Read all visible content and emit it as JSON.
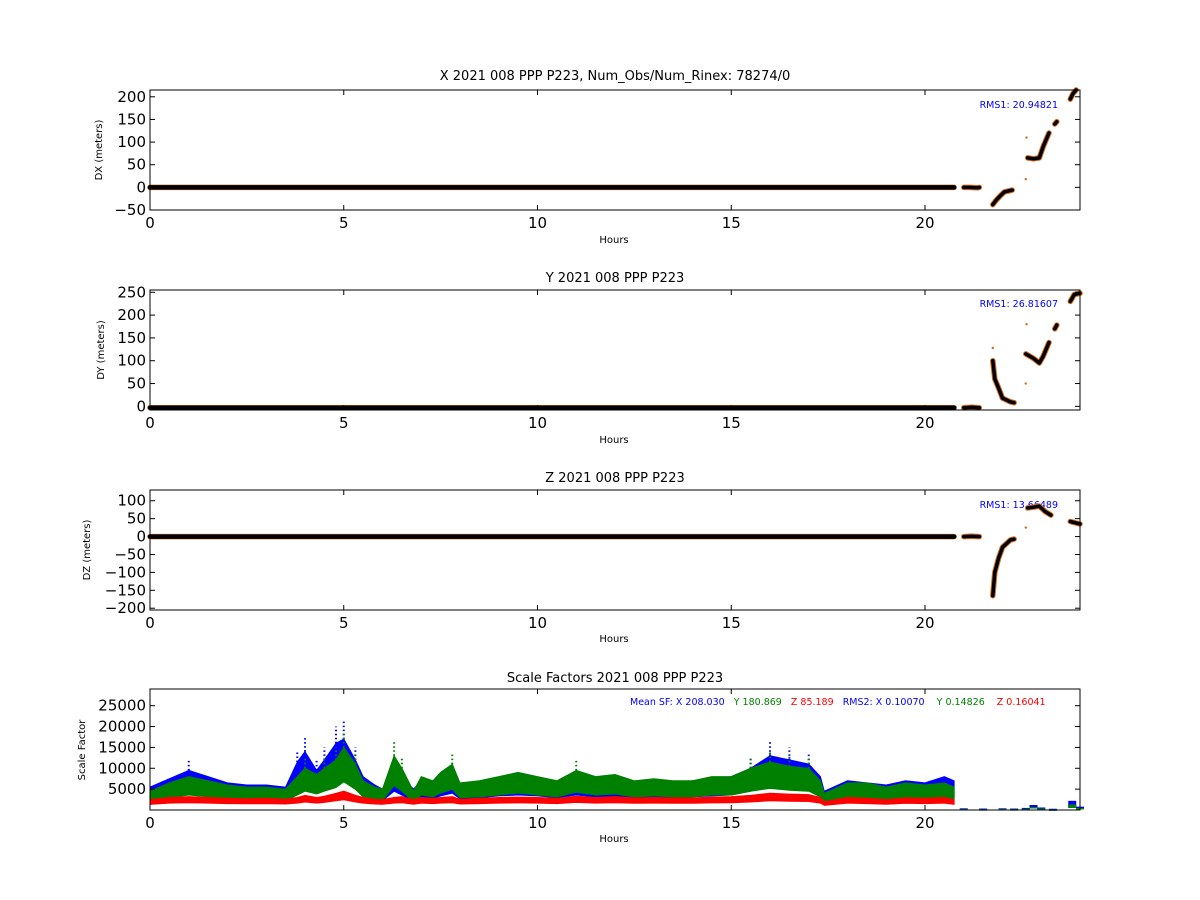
{
  "colors": {
    "data": "#000000",
    "edge": "#d2691e",
    "x": "#0000ff",
    "y": "#008000",
    "z": "#ff0000"
  },
  "chart_data": [
    {
      "type": "scatter",
      "title": "X 2021 008 PPP  P223, Num_Obs/Num_Rinex: 78274/0",
      "xlabel": "Hours",
      "ylabel": "DX (meters)",
      "xlim": [
        0,
        24
      ],
      "ylim": [
        -50,
        215
      ],
      "xticks": [
        "0",
        "5",
        "10",
        "15",
        "20"
      ],
      "yticks": [
        "200",
        "150",
        "100",
        "50",
        "0",
        "−50"
      ],
      "annotation": "RMS1: 20.94821",
      "series": [
        {
          "segments": [
            [
              [
                0,
                0
              ],
              [
                20.75,
                0
              ]
            ],
            [
              [
                21.0,
                0
              ],
              [
                21.15,
                0
              ],
              [
                21.35,
                -1
              ],
              [
                21.4,
                0
              ]
            ],
            [
              [
                21.75,
                -38
              ],
              [
                21.85,
                -27
              ],
              [
                21.95,
                -18
              ],
              [
                22.05,
                -10
              ],
              [
                22.25,
                -6
              ]
            ],
            [
              [
                22.65,
                65
              ],
              [
                22.8,
                63
              ],
              [
                22.95,
                65
              ],
              [
                23.05,
                90
              ],
              [
                23.2,
                120
              ]
            ],
            [
              [
                23.35,
                140
              ],
              [
                23.4,
                145
              ]
            ],
            [
              [
                23.75,
                195
              ],
              [
                23.82,
                207
              ],
              [
                23.9,
                215
              ]
            ]
          ],
          "outliers": [
            [
              22.62,
              110
            ],
            [
              22.6,
              18
            ]
          ]
        }
      ]
    },
    {
      "type": "scatter",
      "title": "Y 2021 008 PPP  P223",
      "xlabel": "Hours",
      "ylabel": "DY (meters)",
      "xlim": [
        0,
        24
      ],
      "ylim": [
        -8,
        255
      ],
      "xticks": [
        "0",
        "5",
        "10",
        "15",
        "20"
      ],
      "yticks": [
        "250",
        "200",
        "150",
        "100",
        "50",
        "0"
      ],
      "annotation": "RMS1: 26.81607",
      "series": [
        {
          "segments": [
            [
              [
                0,
                -3
              ],
              [
                20.75,
                -3
              ]
            ],
            [
              [
                21.0,
                -3
              ],
              [
                21.2,
                -2
              ],
              [
                21.4,
                -3
              ]
            ],
            [
              [
                21.75,
                100
              ],
              [
                21.8,
                60
              ],
              [
                21.9,
                40
              ],
              [
                22.0,
                18
              ],
              [
                22.2,
                10
              ],
              [
                22.3,
                8
              ]
            ],
            [
              [
                22.6,
                115
              ],
              [
                22.8,
                105
              ],
              [
                22.95,
                95
              ],
              [
                23.05,
                110
              ],
              [
                23.2,
                140
              ]
            ],
            [
              [
                23.35,
                170
              ],
              [
                23.4,
                178
              ]
            ],
            [
              [
                23.75,
                230
              ],
              [
                23.85,
                245
              ],
              [
                24.0,
                248
              ]
            ]
          ],
          "outliers": [
            [
              22.62,
              180
            ],
            [
              22.6,
              50
            ],
            [
              21.75,
              128
            ]
          ]
        }
      ]
    },
    {
      "type": "scatter",
      "title": "Z 2021 008 PPP  P223",
      "xlabel": "Hours",
      "ylabel": "DZ (meters)",
      "xlim": [
        0,
        24
      ],
      "ylim": [
        -205,
        130
      ],
      "xticks": [
        "0",
        "5",
        "10",
        "15",
        "20"
      ],
      "yticks": [
        "100",
        "50",
        "0",
        "−50",
        "−100",
        "−150",
        "−200"
      ],
      "annotation": "RMS1: 13.66489",
      "series": [
        {
          "segments": [
            [
              [
                0,
                0
              ],
              [
                20.75,
                0
              ]
            ],
            [
              [
                21.0,
                0
              ],
              [
                21.2,
                1
              ],
              [
                21.4,
                0
              ]
            ],
            [
              [
                21.75,
                -165
              ],
              [
                21.8,
                -100
              ],
              [
                21.9,
                -60
              ],
              [
                22.0,
                -30
              ],
              [
                22.2,
                -10
              ],
              [
                22.3,
                -7
              ]
            ],
            [
              [
                22.65,
                80
              ],
              [
                22.8,
                82
              ],
              [
                22.95,
                85
              ],
              [
                23.1,
                70
              ],
              [
                23.25,
                60
              ]
            ],
            [
              [
                23.75,
                42
              ],
              [
                23.9,
                38
              ],
              [
                24.0,
                35
              ]
            ]
          ],
          "outliers": [
            [
              22.6,
              25
            ]
          ]
        }
      ]
    },
    {
      "type": "scatter",
      "title": "Scale Factors 2021 008 PPP  P223",
      "xlabel": "Hours",
      "ylabel": "Scale Factor",
      "xlim": [
        0,
        24
      ],
      "ylim": [
        0,
        29000
      ],
      "xticks": [
        "0",
        "5",
        "10",
        "15",
        "20"
      ],
      "yticks": [
        "25000",
        "20000",
        "15000",
        "10000",
        "5000"
      ],
      "annotation_parts": [
        {
          "text": "Mean SF: X 208.030",
          "color_key": "x"
        },
        {
          "text": "Y 180.869",
          "color_key": "y"
        },
        {
          "text": "Z  85.189",
          "color_key": "z"
        },
        {
          "text": "RMS2: X  0.10070",
          "color_key": "x"
        },
        {
          "text": "Y  0.14826",
          "color_key": "y"
        },
        {
          "text": "Z  0.16041",
          "color_key": "z"
        }
      ],
      "x": [
        0.0,
        0.5,
        1.0,
        1.5,
        2.0,
        2.5,
        3.0,
        3.5,
        3.8,
        4.0,
        4.3,
        4.5,
        4.8,
        5.0,
        5.3,
        5.5,
        5.8,
        6.0,
        6.3,
        6.5,
        6.8,
        7.0,
        7.3,
        7.5,
        7.8,
        8.0,
        8.5,
        9.0,
        9.5,
        10.0,
        10.5,
        11.0,
        11.5,
        12.0,
        12.5,
        13.0,
        13.5,
        14.0,
        14.5,
        15.0,
        15.5,
        16.0,
        16.5,
        17.0,
        17.3,
        17.4,
        18.0,
        18.5,
        19.0,
        19.5,
        20.0,
        20.5,
        20.75
      ],
      "series": [
        {
          "name": "X",
          "color_key": "x",
          "values": [
            5500,
            7500,
            9500,
            8000,
            6500,
            6000,
            6000,
            5500,
            11500,
            14000,
            9500,
            12000,
            16000,
            17000,
            12000,
            8000,
            6000,
            5000,
            10000,
            8000,
            5000,
            7000,
            6000,
            7500,
            9000,
            6000,
            6500,
            7500,
            8000,
            7500,
            6500,
            8000,
            7000,
            7500,
            6500,
            7000,
            6500,
            7000,
            7500,
            8000,
            10000,
            13000,
            12000,
            11000,
            8000,
            4500,
            7000,
            6500,
            6000,
            7000,
            6500,
            8000,
            7000
          ]
        },
        {
          "name": "Y",
          "color_key": "y",
          "values": [
            4500,
            6500,
            8000,
            7000,
            6000,
            5500,
            5500,
            5000,
            8000,
            10000,
            8500,
            10000,
            12000,
            15000,
            11000,
            7000,
            5500,
            5000,
            13000,
            10000,
            4500,
            8000,
            7000,
            9000,
            11000,
            6500,
            7000,
            8000,
            9000,
            8000,
            7000,
            9500,
            8000,
            8500,
            7000,
            7500,
            7000,
            7000,
            8000,
            8000,
            10000,
            11500,
            10500,
            10000,
            7000,
            4000,
            6500,
            6500,
            5500,
            6500,
            6000,
            6500,
            5500
          ]
        },
        {
          "name": "Z",
          "color_key": "z",
          "values": [
            2500,
            3000,
            3200,
            3000,
            2800,
            2700,
            2800,
            2600,
            3000,
            3500,
            3000,
            3300,
            4000,
            4500,
            3500,
            3000,
            2600,
            2500,
            3000,
            3200,
            2500,
            3000,
            2800,
            3000,
            3200,
            2600,
            2800,
            3000,
            3100,
            3000,
            2800,
            3300,
            3000,
            3200,
            2900,
            3000,
            2900,
            2900,
            3100,
            3200,
            3500,
            4000,
            3800,
            3700,
            3000,
            2000,
            3000,
            2800,
            2500,
            2900,
            2800,
            3000,
            2500
          ]
        }
      ],
      "post_gap_x": [
        21.0,
        21.5,
        22.0,
        22.3,
        22.6,
        22.8,
        23.0,
        23.3,
        23.8,
        24.0
      ],
      "post_gap_values": [
        400,
        350,
        400,
        350,
        500,
        1200,
        600,
        300,
        2200,
        800
      ]
    }
  ]
}
